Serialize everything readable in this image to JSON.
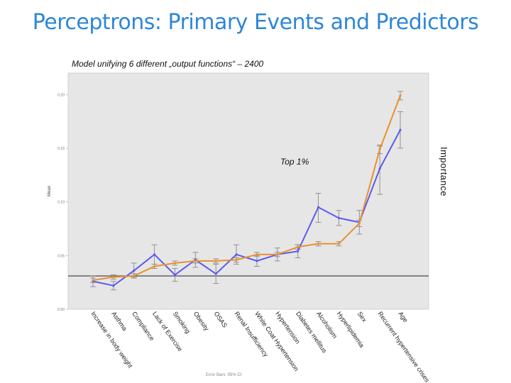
{
  "slide": {
    "title": "Perceptrons: Primary Events and Predictors",
    "subtitle": "Model unifying 6 different „output functions“ – 2400",
    "top_label": "Top 1%",
    "right_label": "Importance",
    "error_bars_caption": "Error Bars: 95% CI"
  },
  "colors": {
    "plot_background": "#e6e6e6",
    "series_blue": "#5b5bef",
    "series_orange": "#e8912e",
    "threshold_line": "#555555",
    "error_bar": "#8a8a8a"
  },
  "chart_data": {
    "type": "line",
    "title": "",
    "xlabel": "",
    "ylabel": "Mean",
    "ylim": [
      0.0,
      0.22
    ],
    "yticks": [
      "0.00",
      "0.05",
      "0.10",
      "0.15",
      "0.20"
    ],
    "grid": false,
    "categories": [
      "Increase in body weight",
      "Asthma",
      "Compliance",
      "Lack of Exercise",
      "Smoking",
      "Obesity",
      "OSAS",
      "Renal Insufficiency",
      "White Coat Hypertension",
      "Hypertension",
      "Diabetes mellitus",
      "Alcoholism",
      "Hyperlipidemia",
      "Sex",
      "Recurrent hypertensive crises",
      "Age"
    ],
    "threshold": 0.031,
    "series": [
      {
        "values": [
          0.026,
          0.022,
          0.036,
          0.051,
          0.032,
          0.046,
          0.033,
          0.051,
          0.045,
          0.051,
          0.054,
          0.095,
          0.085,
          0.081,
          0.131,
          0.167
        ],
        "ci_low": [
          0.021,
          0.018,
          0.03,
          0.042,
          0.026,
          0.039,
          0.024,
          0.042,
          0.04,
          0.045,
          0.048,
          0.081,
          0.078,
          0.07,
          0.107,
          0.15
        ],
        "ci_high": [
          0.031,
          0.026,
          0.043,
          0.06,
          0.038,
          0.053,
          0.042,
          0.06,
          0.05,
          0.057,
          0.06,
          0.108,
          0.092,
          0.092,
          0.152,
          0.184
        ]
      },
      {
        "values": [
          0.027,
          0.03,
          0.031,
          0.04,
          0.043,
          0.045,
          0.045,
          0.046,
          0.051,
          0.051,
          0.058,
          0.061,
          0.061,
          0.08,
          0.149,
          0.199
        ],
        "ci_low": [
          0.025,
          0.028,
          0.029,
          0.038,
          0.041,
          0.043,
          0.043,
          0.044,
          0.049,
          0.049,
          0.056,
          0.059,
          0.059,
          0.077,
          0.145,
          0.195
        ],
        "ci_high": [
          0.029,
          0.032,
          0.033,
          0.042,
          0.045,
          0.047,
          0.047,
          0.048,
          0.053,
          0.053,
          0.06,
          0.063,
          0.063,
          0.083,
          0.153,
          0.203
        ]
      }
    ]
  }
}
